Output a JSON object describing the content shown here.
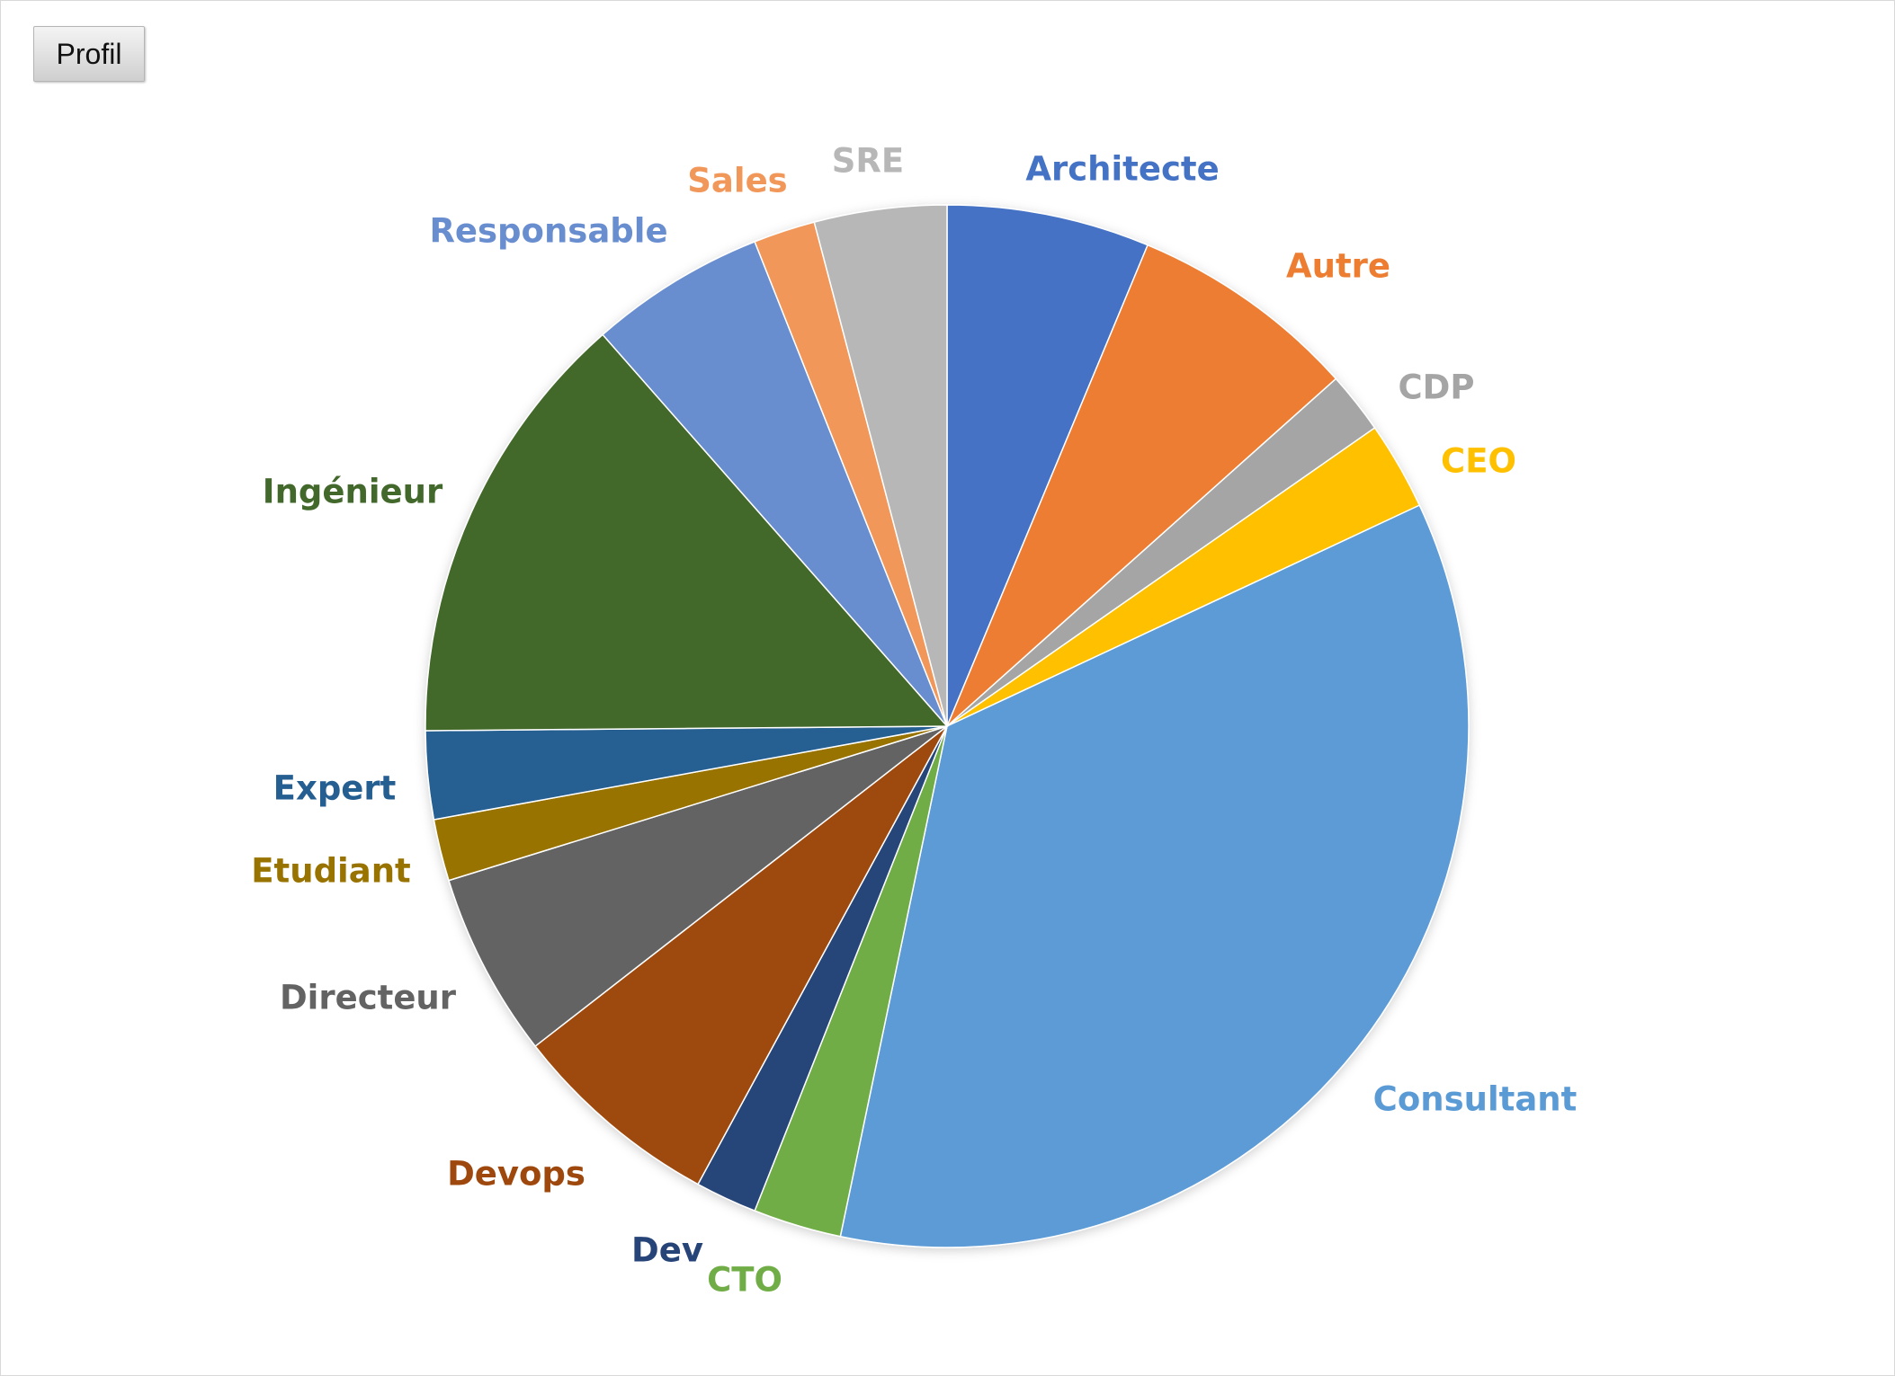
{
  "filter_button": {
    "label": "Profil"
  },
  "chart_data": {
    "type": "pie",
    "title": "",
    "legend": "none",
    "data_labels": "category names outside slices",
    "slices": [
      {
        "label": "Architecte",
        "value": 11.5,
        "color": "#4472C4"
      },
      {
        "label": "Autre",
        "value": 13.0,
        "color": "#ED7D31"
      },
      {
        "label": "CDP",
        "value": 3.5,
        "color": "#A5A5A5"
      },
      {
        "label": "CEO",
        "value": 5.0,
        "color": "#FFC000"
      },
      {
        "label": "Consultant",
        "value": 64.5,
        "color": "#5B9BD5"
      },
      {
        "label": "CTO",
        "value": 5.0,
        "color": "#70AD47"
      },
      {
        "label": "Dev",
        "value": 3.5,
        "color": "#264478"
      },
      {
        "label": "Devops",
        "value": 12.0,
        "color": "#9E480E"
      },
      {
        "label": "Directeur",
        "value": 10.5,
        "color": "#636363"
      },
      {
        "label": "Etudiant",
        "value": 3.5,
        "color": "#997300"
      },
      {
        "label": "Expert",
        "value": 5.0,
        "color": "#255E91"
      },
      {
        "label": "Ingénieur",
        "value": 25.0,
        "color": "#43682B"
      },
      {
        "label": "Responsable",
        "value": 10.0,
        "color": "#698ED0"
      },
      {
        "label": "Sales",
        "value": 3.5,
        "color": "#F1975A"
      },
      {
        "label": "SRE",
        "value": 7.5,
        "color": "#B7B7B7"
      }
    ]
  }
}
